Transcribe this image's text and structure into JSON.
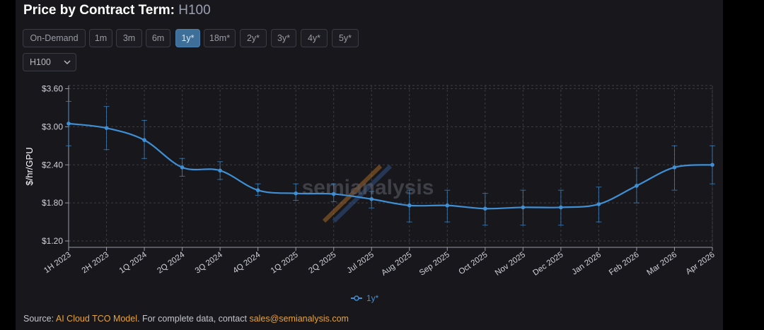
{
  "header": {
    "title": "Price by Contract Term:",
    "subtitle": "H100"
  },
  "term_buttons": [
    {
      "label": "On-Demand",
      "active": false
    },
    {
      "label": "1m",
      "active": false
    },
    {
      "label": "3m",
      "active": false
    },
    {
      "label": "6m",
      "active": false
    },
    {
      "label": "1y*",
      "active": true
    },
    {
      "label": "18m*",
      "active": false
    },
    {
      "label": "2y*",
      "active": false
    },
    {
      "label": "3y*",
      "active": false
    },
    {
      "label": "4y*",
      "active": false
    },
    {
      "label": "5y*",
      "active": false
    }
  ],
  "gpu_select": {
    "value": "H100",
    "icon": "chevron-down-icon"
  },
  "watermark": "semianalysis",
  "colors": {
    "series": "#3f8fd4",
    "accent_button": "#3d6f98",
    "link": "#e8a33d"
  },
  "chart_data": {
    "type": "line",
    "title": "",
    "ylabel": "$/hr/GPU",
    "xlabel": "",
    "ylim": [
      1.1,
      3.65
    ],
    "yticks": [
      1.2,
      1.8,
      2.4,
      3.0,
      3.6
    ],
    "ytick_labels": [
      "$1.20",
      "$1.80",
      "$2.40",
      "$3.00",
      "$3.60"
    ],
    "categories": [
      "1H 2023",
      "2H 2023",
      "1Q 2024",
      "2Q 2024",
      "3Q 2024",
      "4Q 2024",
      "1Q 2025",
      "2Q 2025",
      "Jul 2025",
      "Aug 2025",
      "Sep 2025",
      "Oct 2025",
      "Nov 2025",
      "Dec 2025",
      "Jan 2026",
      "Feb 2026",
      "Mar 2026",
      "Apr 2026"
    ],
    "grid": true,
    "legend_position": "bottom-center",
    "series": [
      {
        "name": "1y*",
        "values": [
          3.05,
          2.98,
          2.79,
          2.36,
          2.31,
          2.0,
          1.95,
          1.94,
          1.86,
          1.76,
          1.76,
          1.71,
          1.73,
          1.73,
          1.78,
          2.07,
          2.36,
          2.4
        ],
        "error_low": [
          2.7,
          2.64,
          2.5,
          2.22,
          2.17,
          1.92,
          1.84,
          1.82,
          1.72,
          1.5,
          1.5,
          1.45,
          1.45,
          1.45,
          1.5,
          1.8,
          2.0,
          2.1
        ],
        "error_high": [
          3.4,
          3.32,
          3.1,
          2.5,
          2.45,
          2.1,
          2.1,
          2.1,
          1.98,
          2.0,
          2.0,
          1.95,
          2.0,
          2.0,
          2.05,
          2.35,
          2.7,
          2.7
        ]
      }
    ]
  },
  "footer": {
    "prefix": "Source:",
    "model_link": "AI Cloud TCO Model",
    "middle": ". For complete data, contact",
    "email": "sales@semianalysis.com"
  }
}
